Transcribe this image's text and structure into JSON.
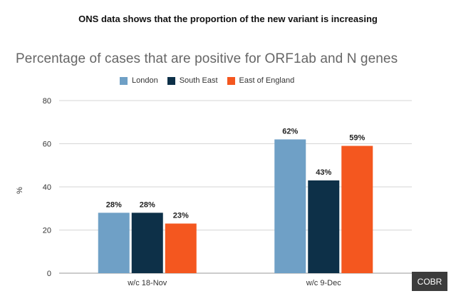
{
  "slide_title": "ONS data shows that the proportion of the new variant is increasing",
  "logo_text": "COBR",
  "chart_data": {
    "type": "bar",
    "title": "Percentage of cases that are positive for ORF1ab and N genes",
    "xlabel": "",
    "ylabel": "%",
    "ylim": [
      0,
      80
    ],
    "yticks": [
      0,
      20,
      40,
      60,
      80
    ],
    "grid": true,
    "legend_position": "top",
    "categories": [
      "w/c 18-Nov",
      "w/c 9-Dec"
    ],
    "series": [
      {
        "name": "London",
        "values": [
          28,
          62
        ],
        "labels": [
          "28%",
          "62%"
        ],
        "color": "#6fa0c6"
      },
      {
        "name": "South East",
        "values": [
          28,
          43
        ],
        "labels": [
          "28%",
          "43%"
        ],
        "color": "#0d3048"
      },
      {
        "name": "East of England",
        "values": [
          23,
          59
        ],
        "labels": [
          "23%",
          "59%"
        ],
        "color": "#f4571f"
      }
    ]
  }
}
